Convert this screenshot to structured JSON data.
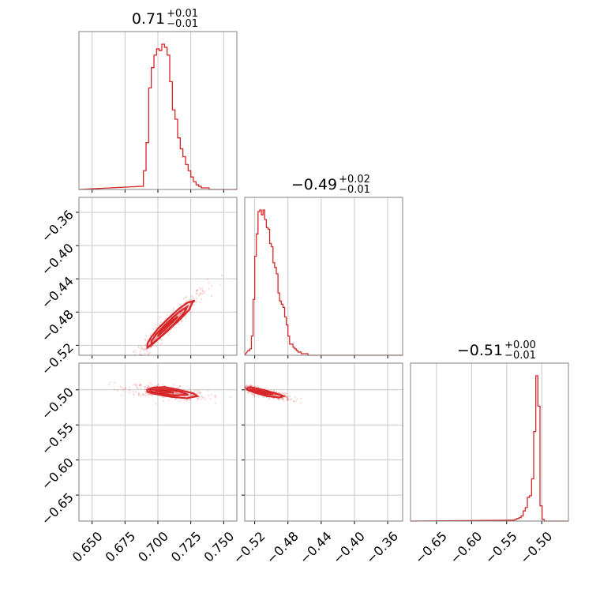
{
  "chart_data": {
    "type": "corner",
    "color": "#d62728",
    "parameters": [
      {
        "median": "0.71",
        "plus": "+0.01",
        "minus": "−0.01",
        "range": [
          0.64,
          0.76
        ]
      },
      {
        "median": "−0.49",
        "plus": "+0.02",
        "minus": "−0.01",
        "range": [
          -0.532,
          -0.342
        ]
      },
      {
        "median": "−0.51",
        "plus": "+0.00",
        "minus": "−0.01",
        "range": [
          -0.687,
          -0.462
        ]
      }
    ],
    "ticks": [
      {
        "values": [
          0.65,
          0.675,
          0.7,
          0.725,
          0.75
        ],
        "labels": [
          "0.650",
          "0.675",
          "0.700",
          "0.725",
          "0.750"
        ]
      },
      {
        "values": [
          -0.52,
          -0.48,
          -0.44,
          -0.4,
          -0.36
        ],
        "labels": [
          "−0.52",
          "−0.48",
          "−0.44",
          "−0.40",
          "−0.36"
        ]
      },
      {
        "values": [
          -0.65,
          -0.6,
          -0.55,
          -0.5
        ],
        "labels": [
          "−0.65",
          "−0.60",
          "−0.55",
          "−0.50"
        ]
      }
    ],
    "row_tick_labels": [
      {
        "values": [
          -0.36,
          -0.4,
          -0.44,
          -0.48,
          -0.52
        ],
        "labels": [
          "−0.36",
          "−0.40",
          "−0.44",
          "−0.48",
          "−0.52"
        ]
      },
      {
        "values": [
          -0.5,
          -0.55,
          -0.6,
          -0.65
        ],
        "labels": [
          "−0.50",
          "−0.55",
          "−0.60",
          "−0.65"
        ]
      }
    ],
    "histograms": [
      {
        "x": [
          0.688,
          0.69,
          0.692,
          0.694,
          0.696,
          0.698,
          0.7,
          0.702,
          0.704,
          0.706,
          0.708,
          0.71,
          0.712,
          0.714,
          0.716,
          0.718,
          0.72,
          0.722,
          0.724,
          0.726,
          0.728,
          0.73,
          0.732,
          0.734,
          0.736,
          0.738,
          0.74,
          0.742
        ],
        "counts": [
          0.02,
          0.12,
          0.3,
          0.65,
          0.78,
          0.86,
          0.9,
          0.89,
          0.93,
          0.91,
          0.86,
          0.69,
          0.51,
          0.45,
          0.33,
          0.26,
          0.21,
          0.16,
          0.12,
          0.08,
          0.05,
          0.03,
          0.02,
          0.01,
          0.01,
          0.01,
          0.0,
          0.0
        ]
      },
      {
        "x": [
          -0.527,
          -0.525,
          -0.523,
          -0.521,
          -0.519,
          -0.517,
          -0.515,
          -0.513,
          -0.511,
          -0.509,
          -0.507,
          -0.505,
          -0.503,
          -0.501,
          -0.499,
          -0.497,
          -0.495,
          -0.493,
          -0.491,
          -0.489,
          -0.487,
          -0.485,
          -0.483,
          -0.481,
          -0.479,
          -0.477,
          -0.475,
          -0.473,
          -0.471,
          -0.469,
          -0.467,
          -0.465,
          -0.463,
          -0.461,
          -0.459,
          -0.457,
          -0.455,
          -0.453,
          -0.451,
          -0.449
        ],
        "counts": [
          0.03,
          0.04,
          0.12,
          0.35,
          0.62,
          0.76,
          0.9,
          0.91,
          0.88,
          0.91,
          0.85,
          0.8,
          0.79,
          0.7,
          0.68,
          0.58,
          0.55,
          0.51,
          0.39,
          0.34,
          0.32,
          0.3,
          0.24,
          0.19,
          0.12,
          0.07,
          0.07,
          0.05,
          0.04,
          0.03,
          0.02,
          0.02,
          0.01,
          0.01,
          0.01,
          0.01,
          0.0,
          0.0,
          0.0,
          0.0
        ]
      },
      {
        "x": [
          -0.54,
          -0.537,
          -0.534,
          -0.531,
          -0.528,
          -0.525,
          -0.522,
          -0.519,
          -0.516,
          -0.513,
          -0.51,
          -0.507,
          -0.504,
          -0.501,
          -0.498,
          -0.495
        ],
        "counts": [
          0.005,
          0.01,
          0.015,
          0.02,
          0.03,
          0.06,
          0.08,
          0.14,
          0.15,
          0.25,
          0.53,
          0.86,
          0.68,
          0.09,
          0.01,
          0.0
        ]
      }
    ],
    "contours": [
      {
        "row": 1,
        "col": 0,
        "levels": [
          [
            [
              0.692,
              -0.523
            ],
            [
              0.695,
              -0.519
            ],
            [
              0.705,
              -0.506
            ],
            [
              0.716,
              -0.49
            ],
            [
              0.724,
              -0.477
            ],
            [
              0.726,
              -0.469
            ],
            [
              0.728,
              -0.466
            ],
            [
              0.722,
              -0.469
            ],
            [
              0.716,
              -0.476
            ],
            [
              0.707,
              -0.489
            ],
            [
              0.7,
              -0.5
            ],
            [
              0.695,
              -0.51
            ],
            [
              0.692,
              -0.518
            ],
            [
              0.692,
              -0.523
            ]
          ],
          [
            [
              0.695,
              -0.52
            ],
            [
              0.702,
              -0.51
            ],
            [
              0.712,
              -0.495
            ],
            [
              0.72,
              -0.481
            ],
            [
              0.722,
              -0.474
            ],
            [
              0.716,
              -0.48
            ],
            [
              0.707,
              -0.493
            ],
            [
              0.699,
              -0.506
            ],
            [
              0.695,
              -0.515
            ],
            [
              0.695,
              -0.52
            ]
          ],
          [
            [
              0.7,
              -0.509
            ],
            [
              0.708,
              -0.497
            ],
            [
              0.715,
              -0.486
            ],
            [
              0.711,
              -0.49
            ],
            [
              0.703,
              -0.501
            ],
            [
              0.7,
              -0.509
            ]
          ]
        ]
      },
      {
        "row": 2,
        "col": 0,
        "levels": [
          [
            [
              0.692,
              -0.5
            ],
            [
              0.696,
              -0.497
            ],
            [
              0.705,
              -0.496
            ],
            [
              0.716,
              -0.5
            ],
            [
              0.727,
              -0.505
            ],
            [
              0.73,
              -0.509
            ],
            [
              0.722,
              -0.512
            ],
            [
              0.71,
              -0.51
            ],
            [
              0.698,
              -0.506
            ],
            [
              0.692,
              -0.503
            ],
            [
              0.692,
              -0.5
            ]
          ],
          [
            [
              0.694,
              -0.5
            ],
            [
              0.705,
              -0.499
            ],
            [
              0.716,
              -0.502
            ],
            [
              0.723,
              -0.507
            ],
            [
              0.712,
              -0.508
            ],
            [
              0.7,
              -0.505
            ],
            [
              0.694,
              -0.502
            ],
            [
              0.694,
              -0.5
            ]
          ],
          [
            [
              0.698,
              -0.501
            ],
            [
              0.706,
              -0.501
            ],
            [
              0.712,
              -0.504
            ],
            [
              0.704,
              -0.504
            ],
            [
              0.698,
              -0.501
            ]
          ]
        ]
      },
      {
        "row": 2,
        "col": 1,
        "levels": [
          [
            [
              -0.53,
              -0.498
            ],
            [
              -0.525,
              -0.496
            ],
            [
              -0.51,
              -0.5
            ],
            [
              -0.495,
              -0.505
            ],
            [
              -0.485,
              -0.509
            ],
            [
              -0.49,
              -0.511
            ],
            [
              -0.505,
              -0.509
            ],
            [
              -0.52,
              -0.504
            ],
            [
              -0.529,
              -0.5
            ],
            [
              -0.53,
              -0.498
            ]
          ],
          [
            [
              -0.526,
              -0.499
            ],
            [
              -0.512,
              -0.502
            ],
            [
              -0.498,
              -0.506
            ],
            [
              -0.506,
              -0.506
            ],
            [
              -0.52,
              -0.502
            ],
            [
              -0.526,
              -0.499
            ]
          ],
          [
            [
              -0.522,
              -0.5
            ],
            [
              -0.51,
              -0.503
            ],
            [
              -0.516,
              -0.502
            ],
            [
              -0.522,
              -0.5
            ]
          ]
        ]
      }
    ]
  }
}
